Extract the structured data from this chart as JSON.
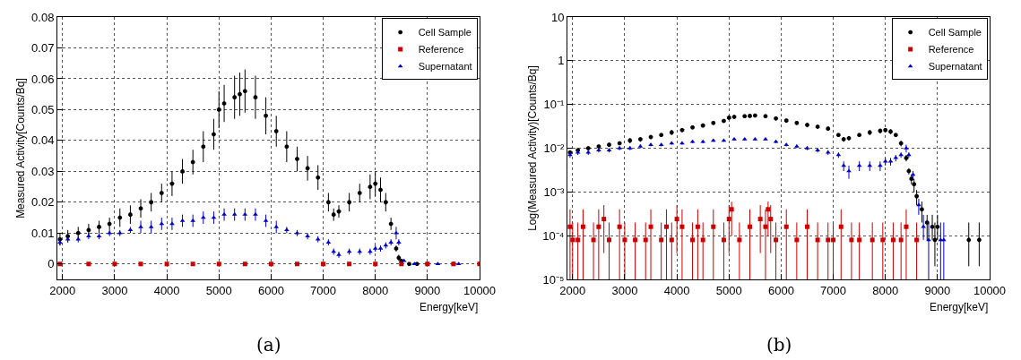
{
  "chart_data": [
    {
      "type": "scatter",
      "xlabel": "Energy[keV]",
      "ylabel": "Measured Activity[Counts/Bq]",
      "xlim": [
        1900,
        10000
      ],
      "xticks": [
        2000,
        3000,
        4000,
        5000,
        6000,
        7000,
        8000,
        9000,
        10000
      ],
      "ylim": [
        -0.005,
        0.08
      ],
      "yticks": [
        0,
        0.01,
        0.02,
        0.03,
        0.04,
        0.05,
        0.06,
        0.07,
        0.08
      ],
      "grid": true,
      "legend": "top right",
      "annotations": [
        "(a)"
      ],
      "series": [
        {
          "name": "Cell Sample",
          "color": "#000000",
          "marker": "circle",
          "x": [
            1950,
            2100,
            2300,
            2500,
            2700,
            2900,
            3100,
            3300,
            3500,
            3700,
            3900,
            4100,
            4300,
            4500,
            4700,
            4900,
            5000,
            5100,
            5300,
            5400,
            5500,
            5700,
            5900,
            6100,
            6300,
            6500,
            6700,
            6900,
            7100,
            7200,
            7300,
            7500,
            7700,
            7900,
            8000,
            8100,
            8200,
            8300,
            8400,
            8450,
            8500,
            8650,
            8800,
            9000,
            9500,
            10000
          ],
          "values": [
            0.008,
            0.009,
            0.01,
            0.011,
            0.012,
            0.013,
            0.015,
            0.016,
            0.018,
            0.02,
            0.023,
            0.026,
            0.03,
            0.033,
            0.038,
            0.042,
            0.05,
            0.052,
            0.054,
            0.055,
            0.056,
            0.054,
            0.048,
            0.043,
            0.038,
            0.034,
            0.031,
            0.028,
            0.02,
            0.016,
            0.017,
            0.02,
            0.023,
            0.025,
            0.026,
            0.024,
            0.02,
            0.013,
            0.005,
            0.002,
            0.001,
            0,
            0,
            0,
            0,
            0
          ],
          "errors": [
            0.002,
            0.002,
            0.002,
            0.002,
            0.002,
            0.002,
            0.003,
            0.003,
            0.003,
            0.003,
            0.003,
            0.004,
            0.004,
            0.004,
            0.005,
            0.005,
            0.006,
            0.006,
            0.007,
            0.007,
            0.007,
            0.007,
            0.006,
            0.005,
            0.005,
            0.004,
            0.004,
            0.004,
            0.003,
            0.002,
            0.002,
            0.003,
            0.003,
            0.004,
            0.004,
            0.004,
            0.003,
            0.002,
            0.001,
            0.001,
            null,
            null,
            null,
            null,
            null,
            null
          ]
        },
        {
          "name": "Reference",
          "color": "#cc0000",
          "marker": "square",
          "x": [
            1950,
            2500,
            3000,
            3500,
            4000,
            4500,
            5000,
            5500,
            6000,
            6500,
            7000,
            7500,
            8000,
            8500,
            9000,
            9500,
            10000
          ],
          "values": [
            0,
            0,
            0,
            0,
            0,
            0,
            0,
            0,
            0,
            0,
            0,
            0,
            0,
            0,
            0,
            0,
            0
          ]
        },
        {
          "name": "Supernatant",
          "color": "#0000cc",
          "marker": "triangle",
          "x": [
            1950,
            2100,
            2300,
            2500,
            2700,
            2900,
            3100,
            3300,
            3500,
            3700,
            3900,
            4100,
            4300,
            4500,
            4700,
            4900,
            5100,
            5300,
            5500,
            5700,
            5900,
            6100,
            6300,
            6500,
            6700,
            6900,
            7100,
            7200,
            7300,
            7500,
            7700,
            7900,
            8000,
            8100,
            8200,
            8300,
            8400,
            8450,
            8550,
            8750,
            9200,
            9600
          ],
          "values": [
            0.007,
            0.008,
            0.008,
            0.009,
            0.009,
            0.01,
            0.01,
            0.011,
            0.012,
            0.012,
            0.013,
            0.013,
            0.014,
            0.014,
            0.015,
            0.015,
            0.016,
            0.016,
            0.016,
            0.016,
            0.014,
            0.012,
            0.011,
            0.01,
            0.009,
            0.008,
            0.007,
            0.004,
            0.003,
            0.004,
            0.004,
            0.004,
            0.005,
            0.005,
            0.006,
            0.007,
            0.01,
            0.007,
            0.001,
            0,
            0,
            0
          ],
          "errors": [
            0.001,
            0.001,
            0.001,
            0.001,
            0.001,
            0.001,
            0.001,
            0.001,
            0.002,
            0.002,
            0.002,
            0.002,
            0.002,
            0.002,
            0.002,
            0.002,
            0.002,
            0.002,
            0.002,
            0.002,
            0.002,
            0.002,
            0.001,
            0.001,
            0.001,
            0.001,
            0.001,
            0.001,
            0.001,
            0.001,
            0.001,
            0.001,
            0.001,
            0.001,
            0.001,
            0.001,
            0.002,
            0.001,
            null,
            null,
            null,
            null
          ]
        }
      ]
    },
    {
      "type": "scatter",
      "log": "y",
      "xlabel": "Energy[keV]",
      "ylabel": "Log(Measured Activity)[Counts/Bq]",
      "xlim": [
        1900,
        10000
      ],
      "xticks": [
        2000,
        3000,
        4000,
        5000,
        6000,
        7000,
        8000,
        9000,
        10000
      ],
      "ylim": [
        1e-05,
        10
      ],
      "yticks": [
        {
          "value": 1e-05,
          "label": "10⁻⁵"
        },
        {
          "value": 0.0001,
          "label": "10⁻⁴"
        },
        {
          "value": 0.001,
          "label": "10⁻³"
        },
        {
          "value": 0.01,
          "label": "10⁻²"
        },
        {
          "value": 0.1,
          "label": "10⁻¹"
        },
        1,
        10
      ],
      "grid": true,
      "legend": "top right",
      "annotations": [
        "(b)"
      ],
      "series": [
        {
          "name": "Cell Sample",
          "color": "#000000",
          "marker": "circle",
          "x": [
            1950,
            2100,
            2300,
            2500,
            2700,
            2900,
            3100,
            3300,
            3500,
            3700,
            3900,
            4100,
            4300,
            4500,
            4700,
            4900,
            5000,
            5100,
            5300,
            5400,
            5500,
            5700,
            5900,
            6100,
            6300,
            6500,
            6700,
            6900,
            7100,
            7200,
            7300,
            7500,
            7700,
            7900,
            8000,
            8100,
            8200,
            8300,
            8400,
            8450,
            8500,
            8550,
            8600,
            8700,
            8800,
            8900,
            8950,
            9000,
            9600,
            9800
          ],
          "values": [
            0.008,
            0.009,
            0.01,
            0.011,
            0.012,
            0.013,
            0.015,
            0.016,
            0.018,
            0.02,
            0.023,
            0.026,
            0.03,
            0.033,
            0.038,
            0.042,
            0.05,
            0.052,
            0.054,
            0.055,
            0.056,
            0.054,
            0.048,
            0.043,
            0.038,
            0.034,
            0.031,
            0.028,
            0.02,
            0.016,
            0.017,
            0.02,
            0.023,
            0.025,
            0.026,
            0.024,
            0.02,
            0.013,
            0.006,
            0.003,
            0.002,
            0.0015,
            0.0008,
            0.0004,
            0.0002,
            0.00016,
            8e-05,
            0.00016,
            8e-05,
            8e-05
          ],
          "errors": [
            [
              0.007,
              0.009
            ],
            [
              0.008,
              0.01
            ],
            [
              0.009,
              0.011
            ],
            [
              0.01,
              0.012
            ],
            [
              0.011,
              0.013
            ],
            [
              0.012,
              0.014
            ],
            [
              0.013,
              0.017
            ],
            [
              0.014,
              0.018
            ],
            [
              0.016,
              0.02
            ],
            [
              0.018,
              0.022
            ],
            [
              0.02,
              0.026
            ],
            [
              0.023,
              0.029
            ],
            [
              0.027,
              0.033
            ],
            [
              0.03,
              0.036
            ],
            [
              0.034,
              0.042
            ],
            [
              0.038,
              0.046
            ],
            [
              0.045,
              0.055
            ],
            [
              0.047,
              0.057
            ],
            [
              0.049,
              0.059
            ],
            [
              0.05,
              0.06
            ],
            [
              0.051,
              0.061
            ],
            [
              0.049,
              0.059
            ],
            [
              0.043,
              0.053
            ],
            [
              0.039,
              0.047
            ],
            [
              0.034,
              0.042
            ],
            [
              0.03,
              0.038
            ],
            [
              0.028,
              0.034
            ],
            [
              0.025,
              0.031
            ],
            [
              0.018,
              0.022
            ],
            [
              0.014,
              0.018
            ],
            [
              0.015,
              0.019
            ],
            [
              0.018,
              0.022
            ],
            [
              0.02,
              0.026
            ],
            [
              0.022,
              0.028
            ],
            [
              0.023,
              0.029
            ],
            [
              0.021,
              0.027
            ],
            [
              0.018,
              0.022
            ],
            [
              0.011,
              0.015
            ],
            [
              0.005,
              0.007
            ],
            [
              0.0025,
              0.0035
            ],
            [
              0.0015,
              0.0025
            ],
            [
              0.001,
              0.002
            ],
            [
              0.0005,
              0.0011
            ],
            [
              0.0002,
              0.0006
            ],
            [
              8e-05,
              0.0003
            ],
            [
              8e-05,
              0.0003
            ],
            [
              2e-05,
              0.0002
            ],
            [
              8e-05,
              0.0003
            ],
            [
              2e-05,
              0.0002
            ],
            [
              2e-05,
              0.0002
            ]
          ]
        },
        {
          "name": "Reference",
          "color": "#cc0000",
          "marker": "square",
          "x": [
            1950,
            2000,
            2100,
            2200,
            2400,
            2500,
            2600,
            2700,
            2900,
            3000,
            3200,
            3400,
            3500,
            3700,
            3800,
            3900,
            4000,
            4100,
            4300,
            4400,
            4500,
            4700,
            4900,
            5000,
            5050,
            5200,
            5400,
            5600,
            5700,
            5750,
            5800,
            5900,
            6100,
            6300,
            6500,
            6700,
            6900,
            7000,
            7150,
            7350,
            7500,
            7750,
            7950,
            8150,
            8300,
            8400,
            8600
          ],
          "values": [
            0.00016,
            8e-05,
            8e-05,
            0.00016,
            8e-05,
            0.00016,
            0.00024,
            8e-05,
            0.00016,
            8e-05,
            8e-05,
            8e-05,
            0.00016,
            8e-05,
            0.00016,
            8e-05,
            0.00024,
            0.00016,
            8e-05,
            0.00016,
            8e-05,
            0.00016,
            8e-05,
            0.00024,
            0.0004,
            8e-05,
            0.00016,
            0.00024,
            0.00016,
            0.0004,
            0.00024,
            8e-05,
            0.00016,
            8e-05,
            0.00016,
            8e-05,
            8e-05,
            8e-05,
            0.00016,
            8e-05,
            8e-05,
            8e-05,
            8e-05,
            8e-05,
            8e-05,
            0.00016,
            8e-05
          ],
          "errors": [
            [
              1e-05,
              0.0004
            ],
            [
              1e-05,
              0.0002
            ],
            [
              1e-05,
              0.0002
            ],
            [
              1e-05,
              0.0004
            ],
            [
              1e-05,
              0.0002
            ],
            [
              1e-05,
              0.0004
            ],
            [
              4e-05,
              0.0005
            ],
            [
              1e-05,
              0.0002
            ],
            [
              1e-05,
              0.0004
            ],
            [
              1e-05,
              0.0002
            ],
            [
              1e-05,
              0.0002
            ],
            [
              1e-05,
              0.0002
            ],
            [
              1e-05,
              0.0004
            ],
            [
              1e-05,
              0.0002
            ],
            [
              1e-05,
              0.0004
            ],
            [
              1e-05,
              0.0002
            ],
            [
              4e-05,
              0.0005
            ],
            [
              1e-05,
              0.0004
            ],
            [
              1e-05,
              0.0002
            ],
            [
              1e-05,
              0.0004
            ],
            [
              1e-05,
              0.0002
            ],
            [
              1e-05,
              0.0004
            ],
            [
              1e-05,
              0.0002
            ],
            [
              4e-05,
              0.0005
            ],
            [
              0.0001,
              0.0006
            ],
            [
              1e-05,
              0.0002
            ],
            [
              1e-05,
              0.0004
            ],
            [
              4e-05,
              0.0005
            ],
            [
              1e-05,
              0.0004
            ],
            [
              0.0001,
              0.0006
            ],
            [
              4e-05,
              0.0005
            ],
            [
              1e-05,
              0.0002
            ],
            [
              1e-05,
              0.0004
            ],
            [
              1e-05,
              0.0002
            ],
            [
              1e-05,
              0.0004
            ],
            [
              1e-05,
              0.0002
            ],
            [
              1e-05,
              0.0002
            ],
            [
              1e-05,
              0.0002
            ],
            [
              1e-05,
              0.0004
            ],
            [
              1e-05,
              0.0002
            ],
            [
              1e-05,
              0.0002
            ],
            [
              1e-05,
              0.0002
            ],
            [
              1e-05,
              0.0002
            ],
            [
              1e-05,
              0.0002
            ],
            [
              1e-05,
              0.0002
            ],
            [
              1e-05,
              0.0004
            ],
            [
              1e-05,
              0.0002
            ]
          ]
        },
        {
          "name": "Supernatant",
          "color": "#0000cc",
          "marker": "triangle",
          "x": [
            1950,
            2100,
            2300,
            2500,
            2700,
            2900,
            3100,
            3300,
            3500,
            3700,
            3900,
            4100,
            4300,
            4500,
            4700,
            4900,
            5100,
            5300,
            5500,
            5700,
            5900,
            6100,
            6300,
            6500,
            6700,
            6900,
            7100,
            7200,
            7300,
            7500,
            7700,
            7900,
            8000,
            8100,
            8200,
            8300,
            8400,
            8450,
            8530,
            8640,
            8730,
            8830,
            9060,
            9120
          ],
          "values": [
            0.007,
            0.008,
            0.008,
            0.009,
            0.009,
            0.01,
            0.01,
            0.011,
            0.012,
            0.012,
            0.013,
            0.013,
            0.014,
            0.014,
            0.015,
            0.015,
            0.016,
            0.016,
            0.016,
            0.016,
            0.014,
            0.012,
            0.011,
            0.01,
            0.009,
            0.008,
            0.007,
            0.004,
            0.003,
            0.004,
            0.004,
            0.004,
            0.005,
            0.005,
            0.006,
            0.007,
            0.01,
            0.007,
            0.0025,
            0.0005,
            0.00016,
            8e-05,
            8e-05,
            8e-05
          ],
          "errors": [
            [
              0.006,
              0.008
            ],
            [
              0.007,
              0.009
            ],
            [
              0.007,
              0.009
            ],
            [
              0.008,
              0.01
            ],
            [
              0.008,
              0.01
            ],
            [
              0.009,
              0.011
            ],
            [
              0.009,
              0.011
            ],
            [
              0.01,
              0.012
            ],
            [
              0.011,
              0.013
            ],
            [
              0.011,
              0.013
            ],
            [
              0.012,
              0.014
            ],
            [
              0.012,
              0.014
            ],
            [
              0.013,
              0.015
            ],
            [
              0.013,
              0.015
            ],
            [
              0.014,
              0.016
            ],
            [
              0.014,
              0.016
            ],
            [
              0.015,
              0.017
            ],
            [
              0.015,
              0.017
            ],
            [
              0.015,
              0.017
            ],
            [
              0.015,
              0.017
            ],
            [
              0.013,
              0.015
            ],
            [
              0.011,
              0.013
            ],
            [
              0.01,
              0.012
            ],
            [
              0.009,
              0.011
            ],
            [
              0.008,
              0.01
            ],
            [
              0.007,
              0.009
            ],
            [
              0.006,
              0.008
            ],
            [
              0.003,
              0.005
            ],
            [
              0.002,
              0.004
            ],
            [
              0.003,
              0.005
            ],
            [
              0.003,
              0.005
            ],
            [
              0.003,
              0.005
            ],
            [
              0.004,
              0.006
            ],
            [
              0.004,
              0.006
            ],
            [
              0.005,
              0.007
            ],
            [
              0.006,
              0.008
            ],
            [
              0.008,
              0.012
            ],
            [
              0.006,
              0.008
            ],
            [
              0.002,
              0.003
            ],
            [
              0.0003,
              0.0007
            ],
            [
              8e-05,
              0.0003
            ],
            [
              1e-05,
              0.0002
            ],
            [
              1e-05,
              0.0002
            ],
            [
              1e-05,
              0.0002
            ]
          ]
        }
      ]
    }
  ]
}
